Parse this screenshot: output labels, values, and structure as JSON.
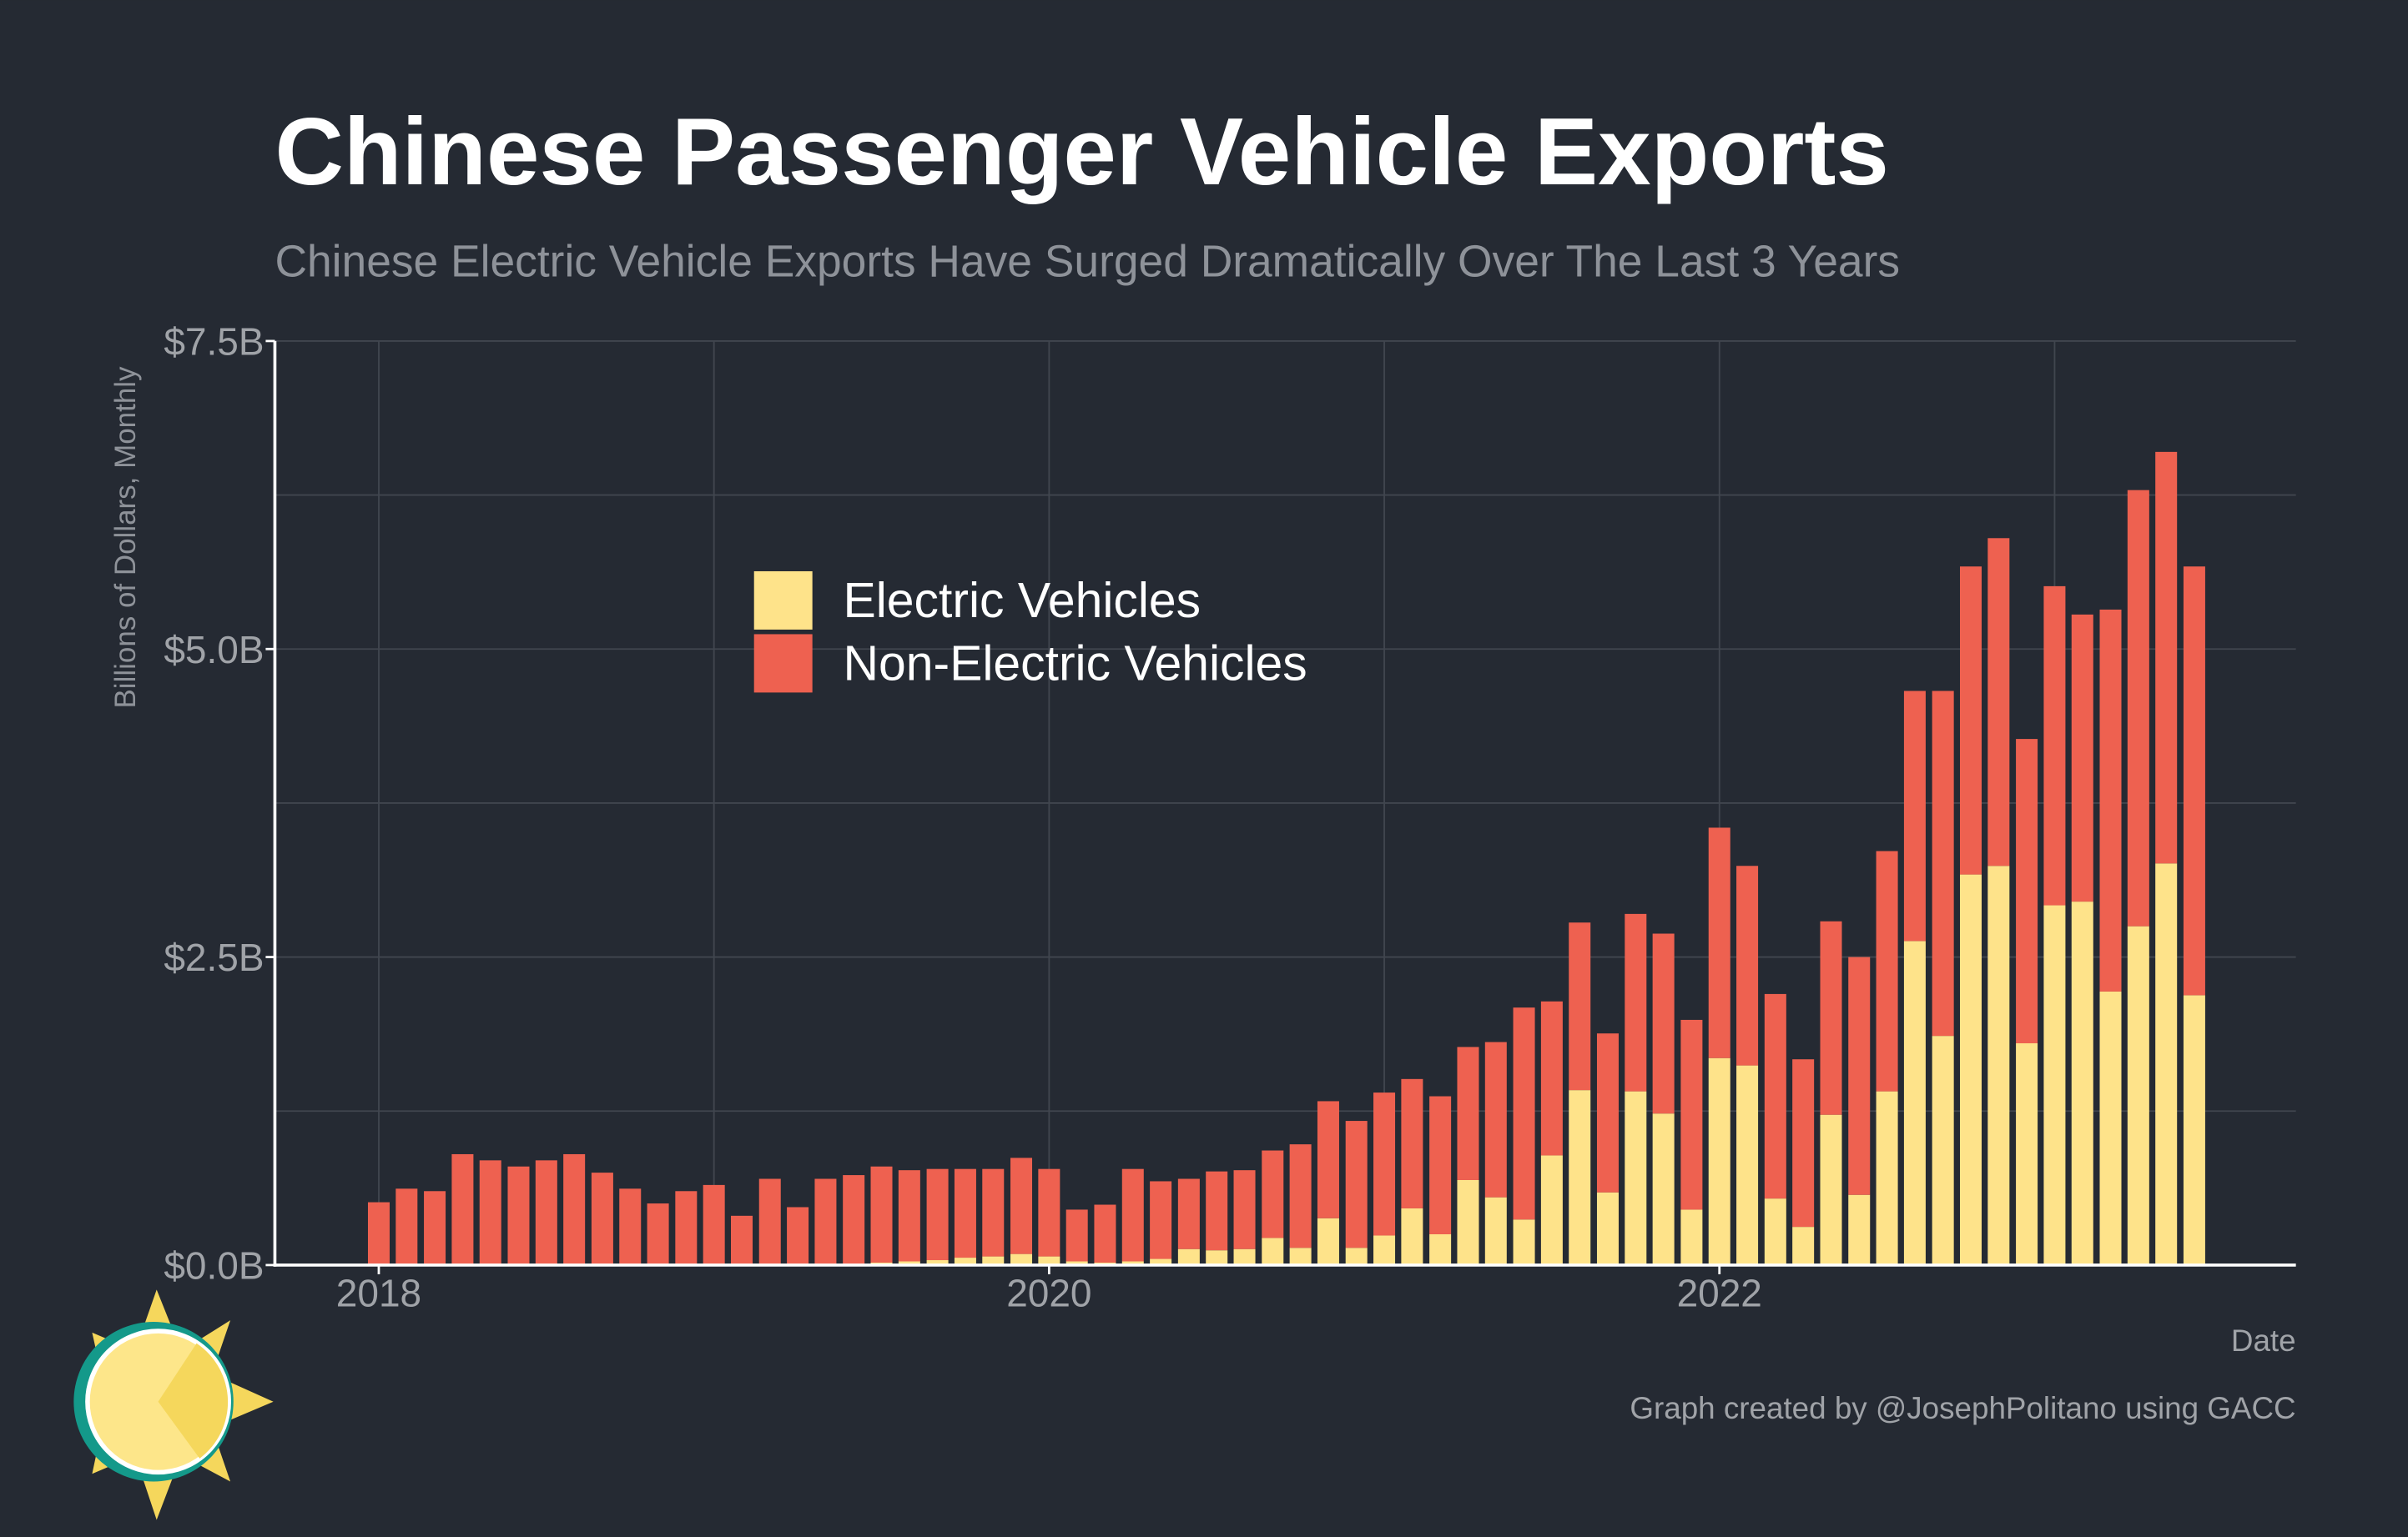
{
  "chart_data": {
    "type": "stacked_bar",
    "title": "Chinese Passenger Vehicle Exports",
    "subtitle": "Chinese Electric Vehicle Exports Have Surged Dramatically Over The Last 3 Years",
    "y_label": "Billions of Dollars, Monthly",
    "x_label": "Date",
    "caption": "Graph created by @JosephPolitano using GACC",
    "x": [
      2018,
      2018.083,
      2018.167,
      2018.25,
      2018.333,
      2018.417,
      2018.5,
      2018.583,
      2018.667,
      2018.75,
      2018.833,
      2018.917,
      2019,
      2019.083,
      2019.167,
      2019.25,
      2019.333,
      2019.417,
      2019.5,
      2019.583,
      2019.667,
      2019.75,
      2019.833,
      2019.917,
      2020,
      2020.083,
      2020.167,
      2020.25,
      2020.333,
      2020.417,
      2020.5,
      2020.583,
      2020.667,
      2020.75,
      2020.833,
      2020.917,
      2021,
      2021.083,
      2021.167,
      2021.25,
      2021.333,
      2021.417,
      2021.5,
      2021.583,
      2021.667,
      2021.75,
      2021.833,
      2021.917,
      2022,
      2022.083,
      2022.167,
      2022.25,
      2022.333,
      2022.417,
      2022.5,
      2022.583,
      2022.667,
      2022.75,
      2022.833,
      2022.917,
      2023,
      2023.083,
      2023.167,
      2023.25,
      2023.333,
      2023.417
    ],
    "series": [
      {
        "name": "Electric Vehicles",
        "color": "#fee38a",
        "values": [
          0,
          0,
          0,
          0,
          0,
          0,
          0,
          0,
          0,
          0,
          0,
          0,
          0,
          0,
          0,
          0,
          0,
          0,
          0.02,
          0.03,
          0.04,
          0.06,
          0.07,
          0.09,
          0.07,
          0.03,
          0.02,
          0.03,
          0.05,
          0.13,
          0.12,
          0.13,
          0.22,
          0.14,
          0.38,
          0.14,
          0.24,
          0.46,
          0.25,
          0.69,
          0.55,
          0.37,
          0.89,
          1.42,
          0.59,
          1.41,
          1.23,
          0.45,
          1.68,
          1.62,
          0.54,
          0.31,
          1.22,
          0.57,
          1.41,
          2.63,
          1.86,
          3.17,
          3.24,
          1.8,
          2.92,
          2.95,
          2.22,
          2.75,
          3.26,
          2.19
        ]
      },
      {
        "name": "Non-Electric Vehicles",
        "color": "#ee6150",
        "values": [
          0.51,
          0.62,
          0.6,
          0.9,
          0.85,
          0.8,
          0.85,
          0.9,
          0.75,
          0.62,
          0.5,
          0.6,
          0.65,
          0.4,
          0.7,
          0.47,
          0.7,
          0.73,
          0.78,
          0.74,
          0.74,
          0.72,
          0.71,
          0.78,
          0.71,
          0.42,
          0.47,
          0.75,
          0.63,
          0.57,
          0.64,
          0.64,
          0.71,
          0.84,
          0.95,
          1.03,
          1.16,
          1.05,
          1.12,
          1.08,
          1.26,
          1.72,
          1.25,
          1.36,
          1.29,
          1.44,
          1.46,
          1.54,
          1.87,
          1.62,
          1.66,
          1.36,
          1.57,
          1.93,
          1.95,
          2.03,
          2.8,
          2.5,
          2.66,
          2.47,
          2.59,
          2.33,
          3.1,
          3.54,
          3.34,
          3.48
        ]
      }
    ],
    "xlim": [
      2017.69,
      2023.72
    ],
    "xticks": [
      2018,
      2020,
      2022
    ],
    "x_minor_ticks": [
      2019,
      2021,
      2023
    ],
    "ylim": [
      0,
      7.5
    ],
    "yticks": [
      {
        "value": 0,
        "label": "$0.0B"
      },
      {
        "value": 2.5,
        "label": "$2.5B"
      },
      {
        "value": 5,
        "label": "$5.0B"
      },
      {
        "value": 7.5,
        "label": "$7.5B"
      }
    ],
    "y_minor_ticks": [
      1.25,
      3.75,
      6.25
    ],
    "grid": true,
    "legend": "top-left"
  }
}
